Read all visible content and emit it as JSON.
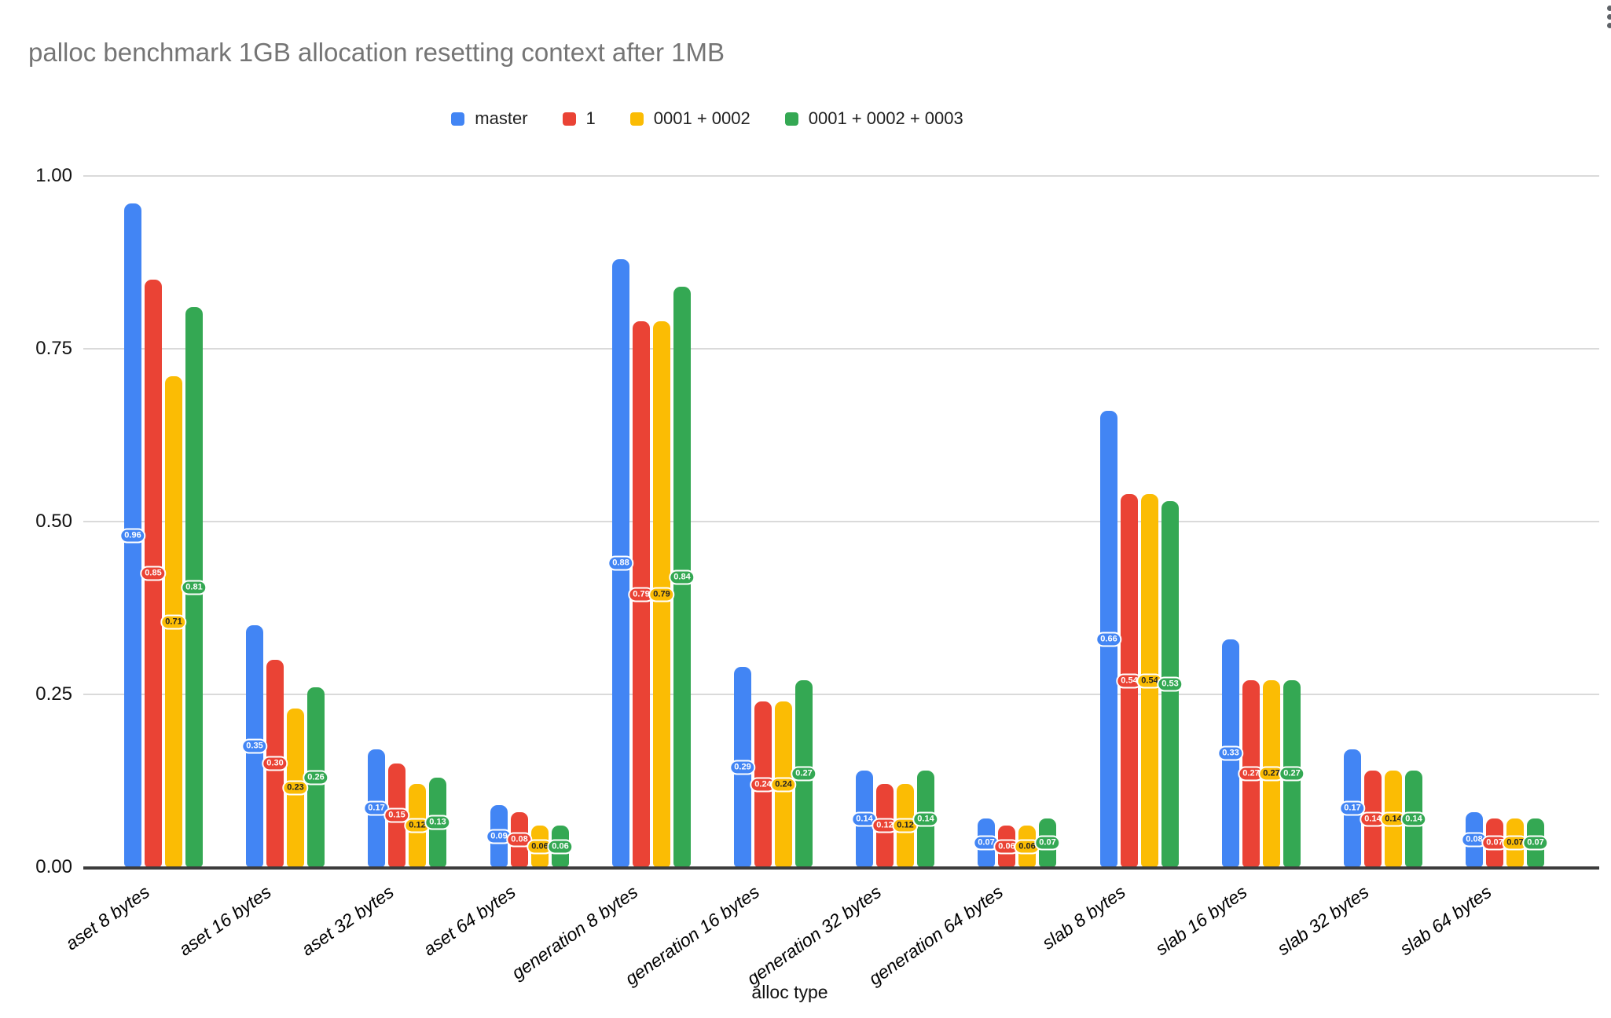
{
  "chart_data": {
    "type": "bar",
    "title": "palloc benchmark 1GB allocation resetting context after 1MB",
    "xlabel": "alloc type",
    "ylabel": "",
    "ylim": [
      0,
      1.0
    ],
    "yticks": [
      "0.00",
      "0.25",
      "0.50",
      "0.75",
      "1.00"
    ],
    "grid": true,
    "legend_position": "top",
    "data_labels": true,
    "categories": [
      "aset 8 bytes",
      "aset 16 bytes",
      "aset 32 bytes",
      "aset 64 bytes",
      "generation 8 bytes",
      "generation 16 bytes",
      "generation 32 bytes",
      "generation 64 bytes",
      "slab 8 bytes",
      "slab 16 bytes",
      "slab 32 bytes",
      "slab 64 bytes"
    ],
    "series": [
      {
        "name": "master",
        "color": "#4285F4",
        "label_text_color": "#ffffff",
        "values": [
          0.96,
          0.35,
          0.17,
          0.09,
          0.88,
          0.29,
          0.14,
          0.07,
          0.66,
          0.33,
          0.17,
          0.08
        ]
      },
      {
        "name": "1",
        "color": "#EA4335",
        "label_text_color": "#ffffff",
        "values": [
          0.85,
          0.3,
          0.15,
          0.08,
          0.79,
          0.24,
          0.12,
          0.06,
          0.54,
          0.27,
          0.14,
          0.07
        ]
      },
      {
        "name": "0001 + 0002",
        "color": "#FBBC04",
        "label_text_color": "#202124",
        "values": [
          0.71,
          0.23,
          0.12,
          0.06,
          0.79,
          0.24,
          0.12,
          0.06,
          0.54,
          0.27,
          0.14,
          0.07
        ]
      },
      {
        "name": "0001 + 0002 + 0003",
        "color": "#34A853",
        "label_text_color": "#ffffff",
        "values": [
          0.81,
          0.26,
          0.13,
          0.06,
          0.84,
          0.27,
          0.14,
          0.07,
          0.53,
          0.27,
          0.14,
          0.07
        ]
      }
    ]
  },
  "ui": {
    "menu_icon": "kebab-menu",
    "colors": {
      "background": "#ffffff",
      "title_text": "#757575",
      "axis_text": "#111111",
      "gridline": "#dadada",
      "baseline": "#3c3c3c",
      "legend_text": "#212121"
    }
  }
}
